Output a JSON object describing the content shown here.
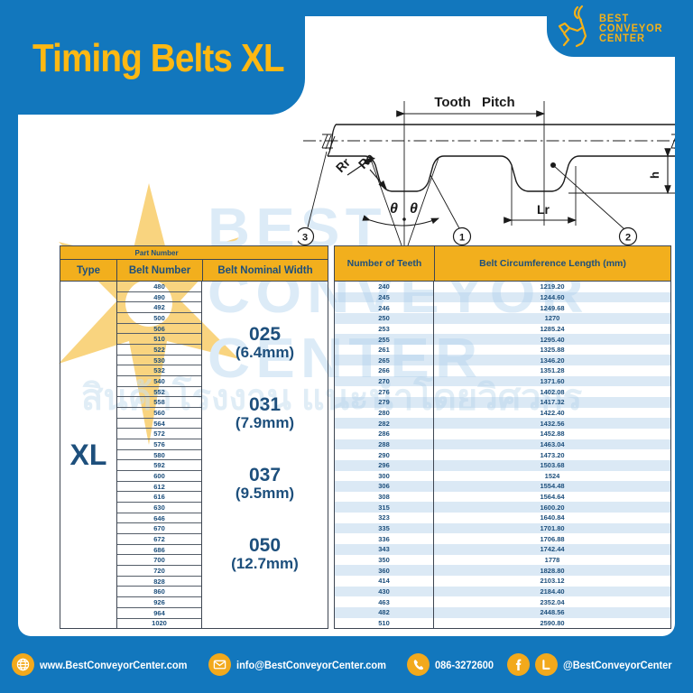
{
  "page": {
    "title": "Timing Belts XL"
  },
  "logo": {
    "line1": "BEST",
    "line2": "CONVEYOR",
    "line3": "CENTER",
    "icon": "goat-icon"
  },
  "colors": {
    "blue": "#1277bd",
    "yellow_header": "#f2af1d",
    "yellow_title": "#fdb813",
    "navy_text": "#1d4f7c",
    "stripe": "#d6e6f2"
  },
  "diagram": {
    "labels": {
      "tooth_pitch": "Tooth Pitch",
      "rr": "Rr",
      "ra": "Ra",
      "theta_left": "θ",
      "theta_right": "θ",
      "lr": "Lr",
      "big_h": "H",
      "small_h": "h",
      "callout_1": "1",
      "callout_2": "2",
      "callout_3": "3"
    }
  },
  "table": {
    "part_number_header": "Part Number",
    "columns": {
      "type": "Type",
      "belt_number": "Belt Number",
      "belt_nominal_width": "Belt Nominal Width",
      "number_of_teeth": "Number of Teeth",
      "belt_circumference": "Belt Circumference Length (mm)"
    },
    "type_value": "XL",
    "nominal_widths": [
      {
        "code": "025",
        "mm": "(6.4mm)"
      },
      {
        "code": "031",
        "mm": "(7.9mm)"
      },
      {
        "code": "037",
        "mm": "(9.5mm)"
      },
      {
        "code": "050",
        "mm": "(12.7mm)"
      }
    ],
    "rows": [
      {
        "belt_number": "480",
        "teeth": "240",
        "circumference": "1219.20"
      },
      {
        "belt_number": "490",
        "teeth": "245",
        "circumference": "1244.60"
      },
      {
        "belt_number": "492",
        "teeth": "246",
        "circumference": "1249.68"
      },
      {
        "belt_number": "500",
        "teeth": "250",
        "circumference": "1270"
      },
      {
        "belt_number": "506",
        "teeth": "253",
        "circumference": "1285.24"
      },
      {
        "belt_number": "510",
        "teeth": "255",
        "circumference": "1295.40"
      },
      {
        "belt_number": "522",
        "teeth": "261",
        "circumference": "1325.88"
      },
      {
        "belt_number": "530",
        "teeth": "265",
        "circumference": "1346.20"
      },
      {
        "belt_number": "532",
        "teeth": "266",
        "circumference": "1351.28"
      },
      {
        "belt_number": "540",
        "teeth": "270",
        "circumference": "1371.60"
      },
      {
        "belt_number": "552",
        "teeth": "276",
        "circumference": "1402.08"
      },
      {
        "belt_number": "558",
        "teeth": "279",
        "circumference": "1417.32"
      },
      {
        "belt_number": "560",
        "teeth": "280",
        "circumference": "1422.40"
      },
      {
        "belt_number": "564",
        "teeth": "282",
        "circumference": "1432.56"
      },
      {
        "belt_number": "572",
        "teeth": "286",
        "circumference": "1452.88"
      },
      {
        "belt_number": "576",
        "teeth": "288",
        "circumference": "1463.04"
      },
      {
        "belt_number": "580",
        "teeth": "290",
        "circumference": "1473.20"
      },
      {
        "belt_number": "592",
        "teeth": "296",
        "circumference": "1503.68"
      },
      {
        "belt_number": "600",
        "teeth": "300",
        "circumference": "1524"
      },
      {
        "belt_number": "612",
        "teeth": "306",
        "circumference": "1554.48"
      },
      {
        "belt_number": "616",
        "teeth": "308",
        "circumference": "1564.64"
      },
      {
        "belt_number": "630",
        "teeth": "315",
        "circumference": "1600.20"
      },
      {
        "belt_number": "646",
        "teeth": "323",
        "circumference": "1640.84"
      },
      {
        "belt_number": "670",
        "teeth": "335",
        "circumference": "1701.80"
      },
      {
        "belt_number": "672",
        "teeth": "336",
        "circumference": "1706.88"
      },
      {
        "belt_number": "686",
        "teeth": "343",
        "circumference": "1742.44"
      },
      {
        "belt_number": "700",
        "teeth": "350",
        "circumference": "1778"
      },
      {
        "belt_number": "720",
        "teeth": "360",
        "circumference": "1828.80"
      },
      {
        "belt_number": "828",
        "teeth": "414",
        "circumference": "2103.12"
      },
      {
        "belt_number": "860",
        "teeth": "430",
        "circumference": "2184.40"
      },
      {
        "belt_number": "926",
        "teeth": "463",
        "circumference": "2352.04"
      },
      {
        "belt_number": "964",
        "teeth": "482",
        "circumference": "2448.56"
      },
      {
        "belt_number": "1020",
        "teeth": "510",
        "circumference": "2590.80"
      }
    ]
  },
  "watermark": {
    "ghost_line1": "BEST",
    "ghost_line2": "CONVEYOR",
    "ghost_line3": "CENTER",
    "thai_text": "สินค้าโรงงาน แนะนำโดยวิศวกร"
  },
  "footer": {
    "website": "www.BestConveyorCenter.com",
    "email": "info@BestConveyorCenter.com",
    "phone": "086-3272600",
    "social": "@BestConveyorCenter"
  }
}
